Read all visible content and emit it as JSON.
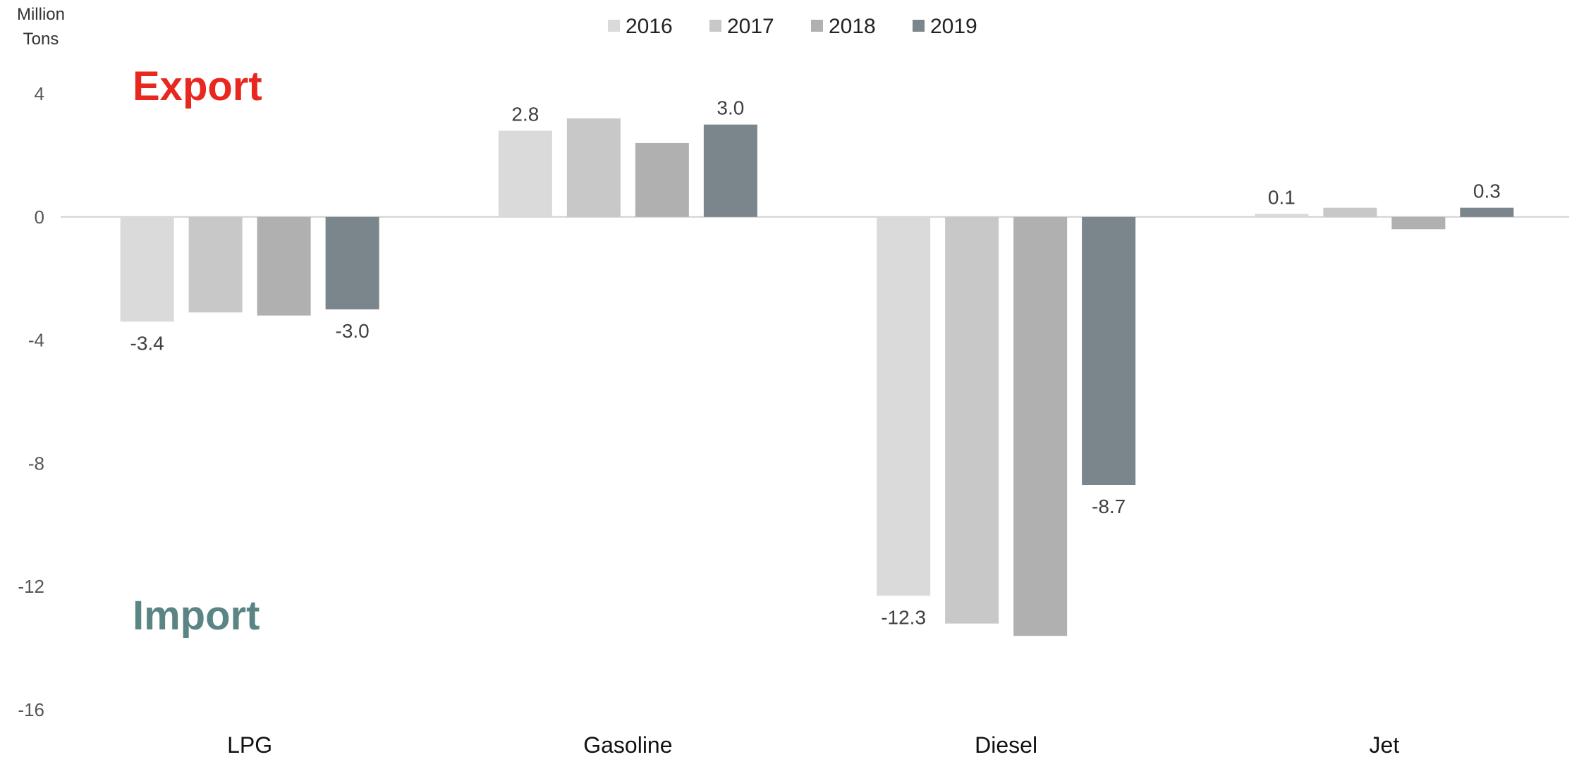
{
  "chart_data": {
    "type": "bar",
    "ylabel": "Million Tons",
    "ylim": [
      -16,
      4
    ],
    "yticks": [
      4,
      0,
      -4,
      -8,
      -12,
      -16
    ],
    "categories": [
      "LPG",
      "Gasoline",
      "Diesel",
      "Jet"
    ],
    "series": [
      {
        "name": "2016",
        "color": "#dadada",
        "values": [
          -3.4,
          2.8,
          -12.3,
          0.1
        ]
      },
      {
        "name": "2017",
        "color": "#c8c8c8",
        "values": [
          -3.1,
          3.2,
          -13.2,
          0.3
        ]
      },
      {
        "name": "2018",
        "color": "#b0b0b0",
        "values": [
          -3.2,
          2.4,
          -13.6,
          -0.4
        ]
      },
      {
        "name": "2019",
        "color": "#7a868c",
        "values": [
          -3.0,
          3.0,
          -8.7,
          0.3
        ]
      }
    ],
    "data_labels": [
      {
        "series": 0,
        "category": 0,
        "text": "-3.4"
      },
      {
        "series": 3,
        "category": 0,
        "text": "-3.0"
      },
      {
        "series": 0,
        "category": 1,
        "text": "2.8"
      },
      {
        "series": 3,
        "category": 1,
        "text": "3.0"
      },
      {
        "series": 0,
        "category": 2,
        "text": "-12.3"
      },
      {
        "series": 3,
        "category": 2,
        "text": "-8.7"
      },
      {
        "series": 0,
        "category": 3,
        "text": "0.1"
      },
      {
        "series": 3,
        "category": 3,
        "text": "0.3"
      }
    ],
    "annotations": [
      {
        "text": "Export",
        "color": "#e8281e"
      },
      {
        "text": "Import",
        "color": "#5a8584"
      }
    ],
    "legend_position": "top-center",
    "grid": false
  }
}
